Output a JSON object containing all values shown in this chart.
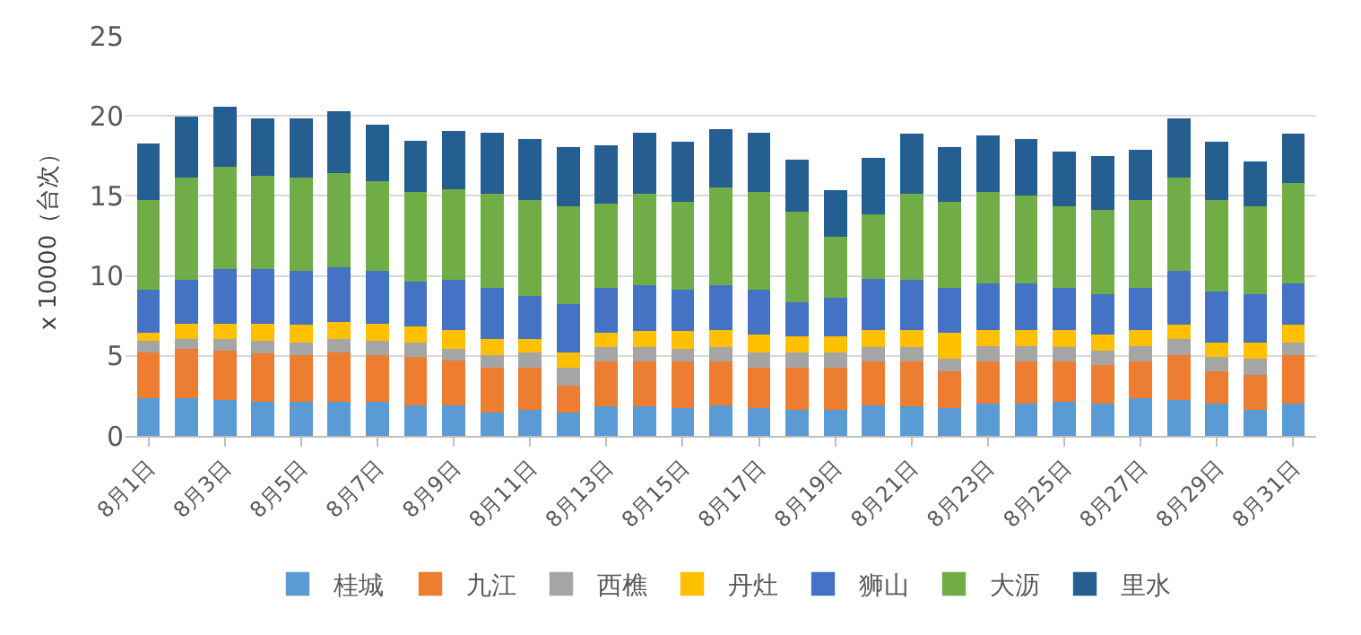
{
  "chart_data": {
    "type": "bar",
    "stacked": true,
    "ylabel": "x 10000（台次）",
    "categories": [
      "8月1日",
      null,
      "8月3日",
      null,
      "8月5日",
      null,
      "8月7日",
      null,
      "8月9日",
      null,
      "8月11日",
      null,
      "8月13日",
      null,
      "8月15日",
      null,
      "8月17日",
      null,
      "8月19日",
      null,
      "8月21日",
      null,
      "8月23日",
      null,
      "8月25日",
      null,
      "8月27日",
      null,
      "8月29日",
      null,
      "8月31日"
    ],
    "series": [
      {
        "name": "桂城",
        "color": "#5b9bd5",
        "values": [
          2.4,
          2.4,
          2.3,
          2.2,
          2.2,
          2.2,
          2.2,
          2.0,
          2.0,
          1.5,
          1.7,
          1.5,
          1.9,
          1.9,
          1.8,
          2.0,
          1.8,
          1.7,
          1.7,
          2.0,
          1.9,
          1.8,
          2.1,
          2.1,
          2.2,
          2.1,
          2.4,
          2.3,
          2.1,
          1.7,
          2.1
        ]
      },
      {
        "name": "九江",
        "color": "#ed7d31",
        "values": [
          2.9,
          3.1,
          3.1,
          3.0,
          2.9,
          3.1,
          2.9,
          3.0,
          2.8,
          2.8,
          2.6,
          1.7,
          2.8,
          2.8,
          2.9,
          2.7,
          2.5,
          2.6,
          2.6,
          2.7,
          2.8,
          2.3,
          2.6,
          2.6,
          2.5,
          2.4,
          2.3,
          2.8,
          2.0,
          2.2,
          3.0
        ]
      },
      {
        "name": "西樵",
        "color": "#a5a5a5",
        "values": [
          0.7,
          0.6,
          0.7,
          0.8,
          0.8,
          0.8,
          0.9,
          0.9,
          0.7,
          0.8,
          1.0,
          1.1,
          0.9,
          0.9,
          0.8,
          0.9,
          1.0,
          1.0,
          1.0,
          0.9,
          0.9,
          0.8,
          1.0,
          1.0,
          0.9,
          0.9,
          1.0,
          1.0,
          0.9,
          1.0,
          0.8
        ]
      },
      {
        "name": "丹灶",
        "color": "#ffc000",
        "values": [
          0.5,
          1.0,
          1.0,
          1.1,
          1.1,
          1.1,
          1.1,
          1.0,
          1.2,
          1.0,
          0.8,
          1.0,
          0.9,
          1.0,
          1.1,
          1.1,
          1.1,
          1.0,
          1.0,
          1.1,
          1.1,
          1.6,
          1.0,
          1.0,
          1.1,
          1.0,
          1.0,
          0.9,
          0.9,
          1.0,
          1.1
        ]
      },
      {
        "name": "狮山",
        "color": "#4472c4",
        "values": [
          2.7,
          2.7,
          3.4,
          3.4,
          3.4,
          3.4,
          3.3,
          2.8,
          3.1,
          3.2,
          2.7,
          3.0,
          2.8,
          2.9,
          2.6,
          2.8,
          2.8,
          2.1,
          2.4,
          3.2,
          3.1,
          2.8,
          2.9,
          2.9,
          2.6,
          2.5,
          2.6,
          3.4,
          3.2,
          3.0,
          2.6
        ]
      },
      {
        "name": "大沥",
        "color": "#70ad47",
        "values": [
          5.6,
          6.4,
          6.4,
          5.8,
          5.8,
          5.9,
          5.6,
          5.6,
          5.7,
          5.9,
          6.0,
          6.1,
          5.3,
          5.7,
          5.5,
          6.1,
          6.1,
          5.7,
          3.8,
          4.0,
          5.4,
          5.4,
          5.7,
          5.5,
          5.1,
          5.3,
          5.5,
          5.8,
          5.7,
          5.5,
          6.3
        ]
      },
      {
        "name": "里水",
        "color": "#255e91",
        "values": [
          3.4,
          3.7,
          3.6,
          3.5,
          3.6,
          3.7,
          3.4,
          3.1,
          3.5,
          3.7,
          3.7,
          3.6,
          3.5,
          3.7,
          3.6,
          3.5,
          3.6,
          3.1,
          2.8,
          3.4,
          3.6,
          3.3,
          3.4,
          3.4,
          3.3,
          3.2,
          3.0,
          3.6,
          3.5,
          2.7,
          2.9
        ]
      }
    ],
    "ylim": [
      0,
      25
    ],
    "yticks": [
      0,
      5,
      10,
      15,
      20,
      25
    ],
    "grid": "y",
    "legend": "bottom"
  }
}
